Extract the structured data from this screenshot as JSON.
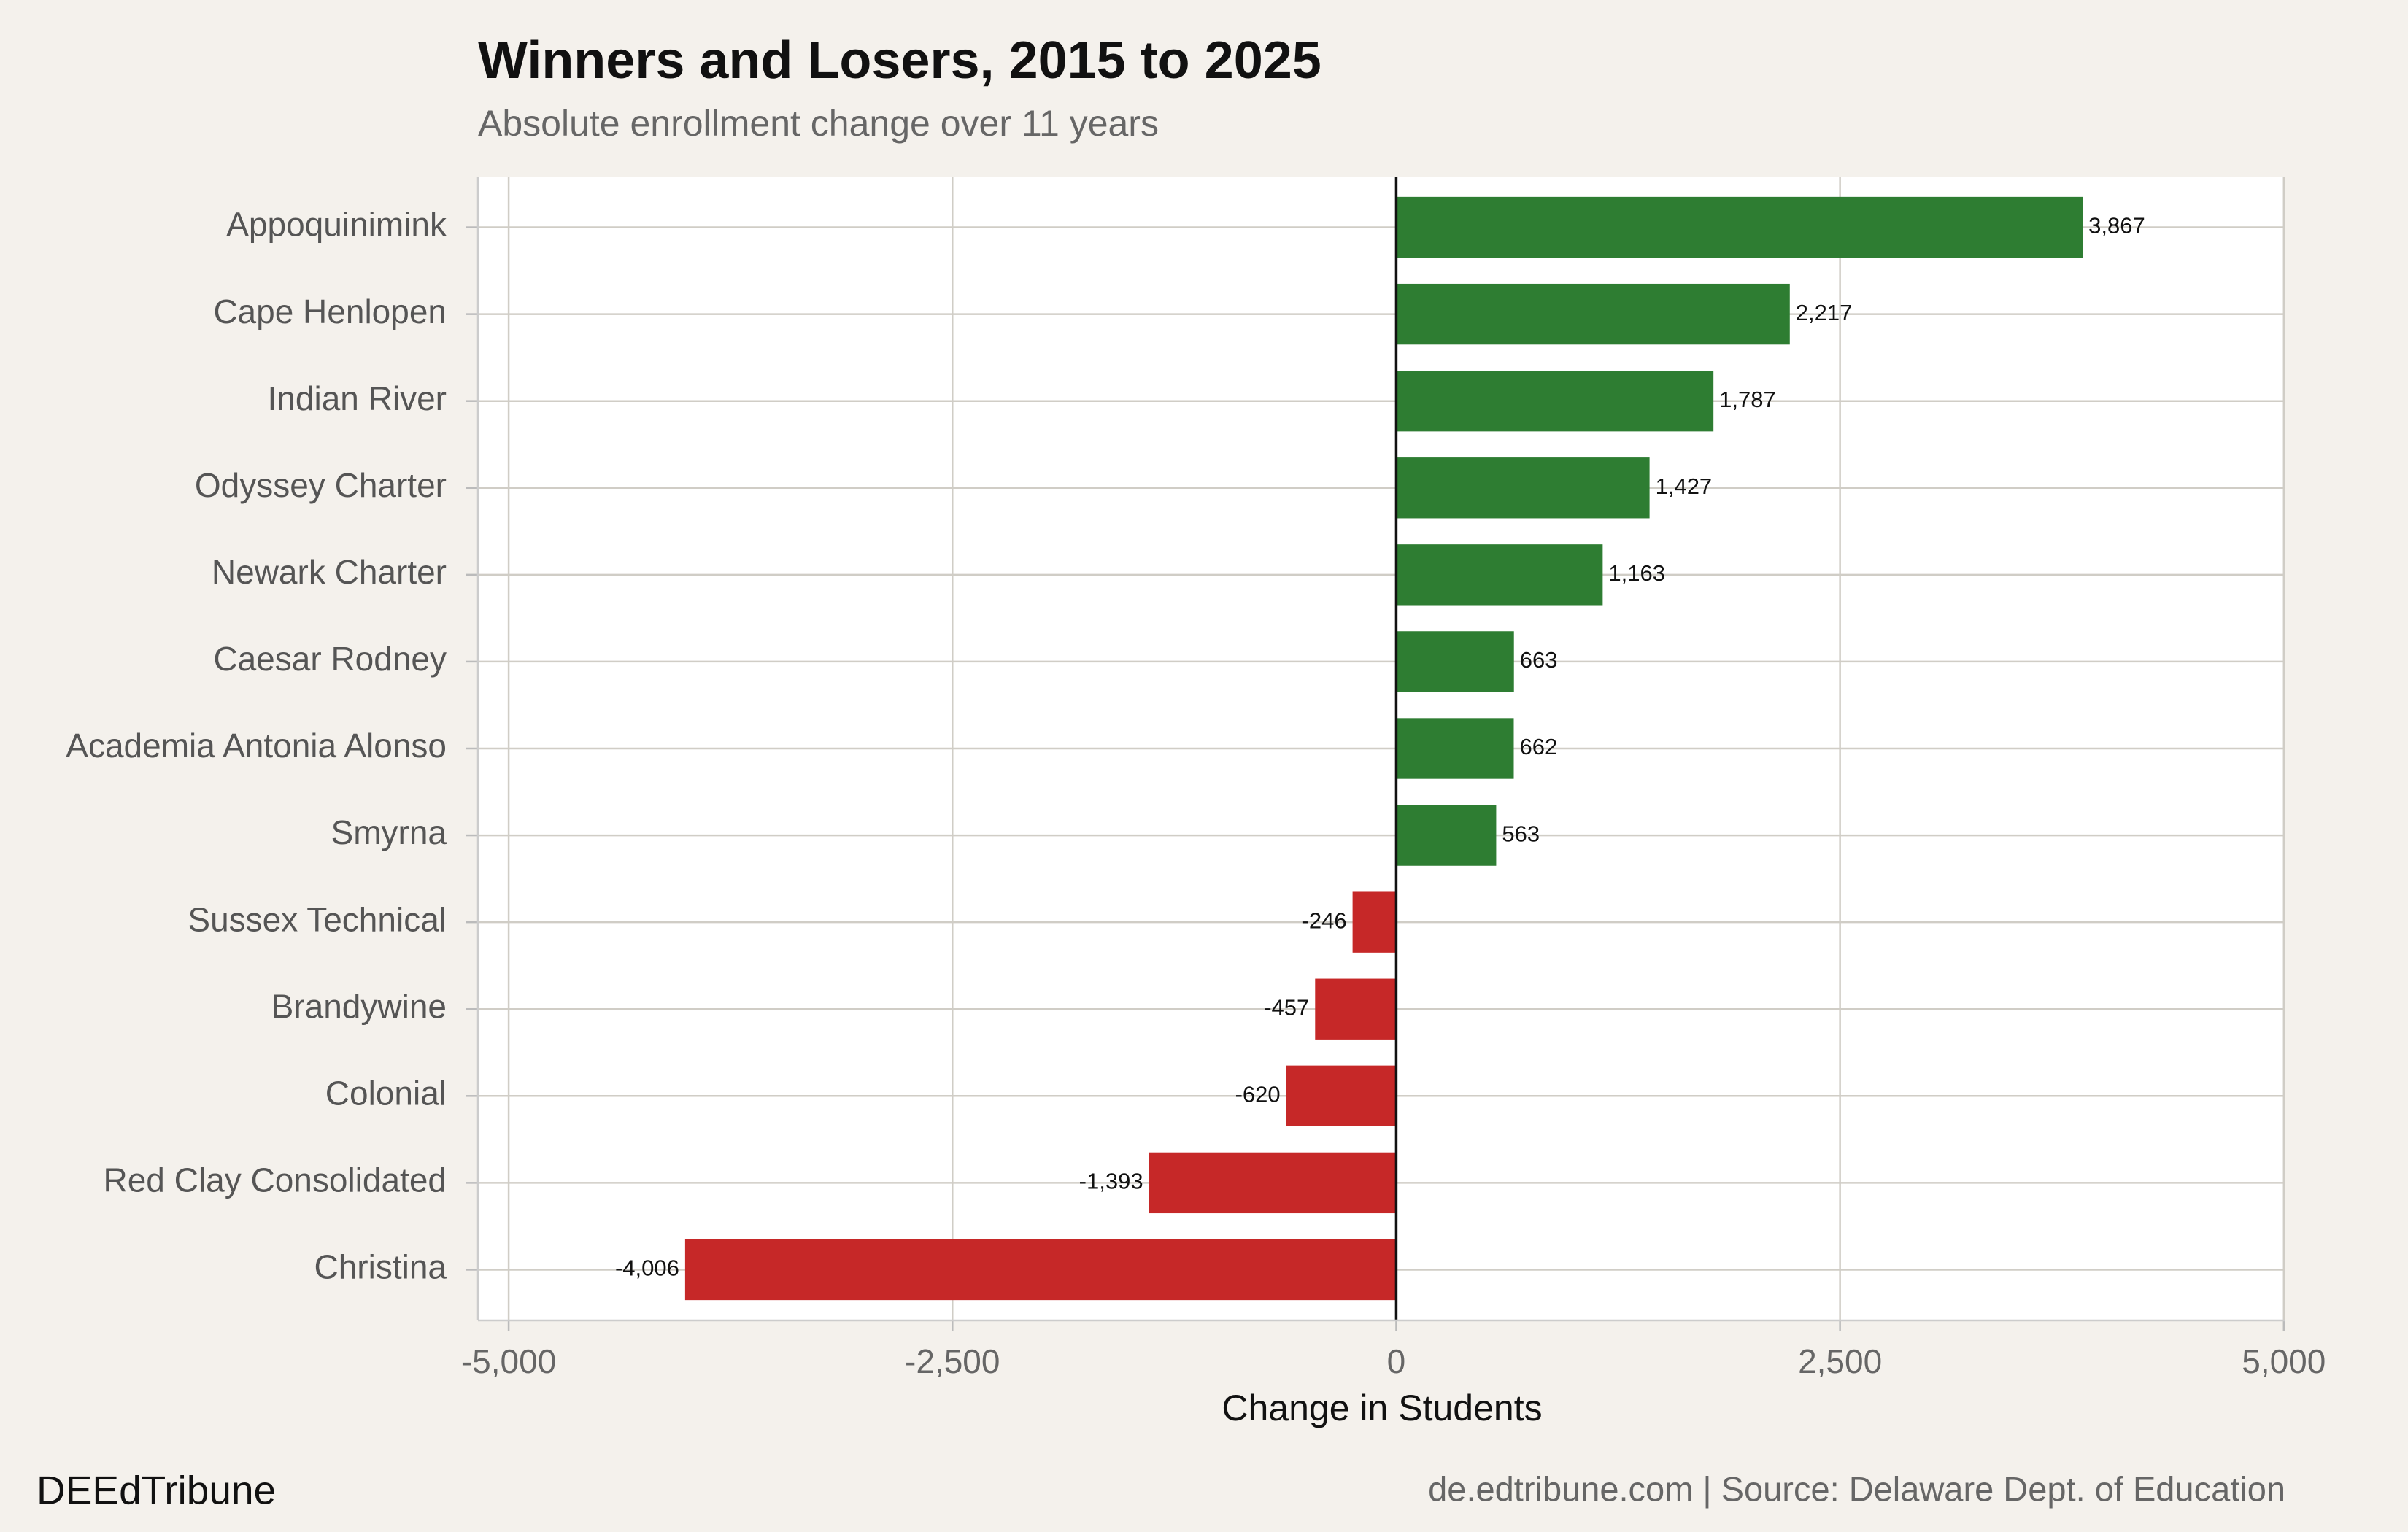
{
  "chart_data": {
    "type": "hbar",
    "title": "Winners and Losers, 2015 to 2025",
    "subtitle": "Absolute enrollment change over 11 years",
    "x_label": "Change in Students",
    "source_left": "DEEdTribune",
    "source_right": "de.edtribune.com | Source: Delaware Dept. of Education",
    "categories": [
      "Appoquinimink",
      "Cape Henlopen",
      "Indian River",
      "Odyssey Charter",
      "Newark Charter",
      "Caesar Rodney",
      "Academia Antonia Alonso",
      "Smyrna",
      "Sussex Technical",
      "Brandywine",
      "Colonial",
      "Red Clay Consolidated",
      "Christina"
    ],
    "values": [
      3867,
      2217,
      1787,
      1427,
      1163,
      663,
      662,
      563,
      -246,
      -457,
      -620,
      -1393,
      -4006
    ],
    "value_labels": [
      "3,867",
      "2,217",
      "1,787",
      "1,427",
      "1,163",
      "663",
      "662",
      "563",
      "-246",
      "-457",
      "-620",
      "-1,393",
      "-4,006"
    ],
    "colors": [
      "#2e7d32",
      "#2e7d32",
      "#2e7d32",
      "#2e7d32",
      "#2e7d32",
      "#2e7d32",
      "#2e7d32",
      "#2e7d32",
      "#c62828",
      "#c62828",
      "#c62828",
      "#c62828",
      "#c62828"
    ],
    "xlim": [
      -5173,
      5009
    ],
    "xticks": [
      {
        "value": -5000,
        "label": "-5,000"
      },
      {
        "value": -2500,
        "label": "-2,500"
      },
      0,
      {
        "value": 2500,
        "label": "2,500"
      },
      {
        "value": 5000,
        "label": "5,000"
      }
    ],
    "grid": true
  }
}
